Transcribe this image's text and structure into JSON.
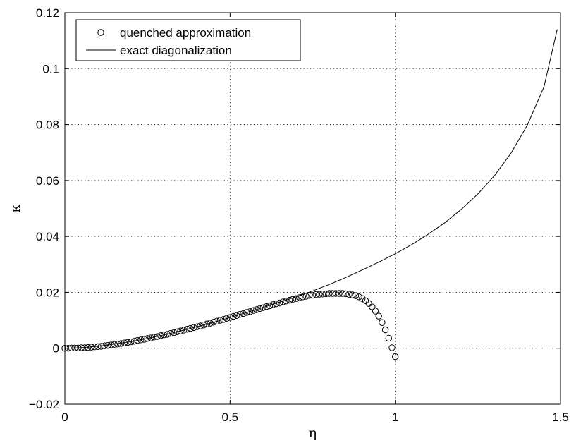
{
  "chart_data": {
    "type": "line",
    "title": "",
    "xlabel": "η",
    "ylabel": "κ",
    "xlim": [
      0,
      1.5
    ],
    "ylim": [
      -0.02,
      0.12
    ],
    "x_ticks": [
      0,
      0.5,
      1,
      1.5
    ],
    "x_tick_labels": [
      "0",
      "0.5",
      "1",
      "1.5"
    ],
    "y_ticks": [
      -0.02,
      0,
      0.02,
      0.04,
      0.06,
      0.08,
      0.1,
      0.12
    ],
    "y_tick_labels": [
      "−0.02",
      "0",
      "0.02",
      "0.04",
      "0.06",
      "0.08",
      "0.1",
      "0.12"
    ],
    "grid": true,
    "legend_position": "top-left",
    "series": [
      {
        "name": "quenched approximation",
        "style": "circle-markers",
        "x": [
          0.0,
          0.01,
          0.02,
          0.03,
          0.04,
          0.05,
          0.06,
          0.07,
          0.08,
          0.09,
          0.1,
          0.11,
          0.12,
          0.13,
          0.14,
          0.15,
          0.16,
          0.17,
          0.18,
          0.19,
          0.2,
          0.21,
          0.22,
          0.23,
          0.24,
          0.25,
          0.26,
          0.27,
          0.28,
          0.29,
          0.3,
          0.31,
          0.32,
          0.33,
          0.34,
          0.35,
          0.36,
          0.37,
          0.38,
          0.39,
          0.4,
          0.41,
          0.42,
          0.43,
          0.44,
          0.45,
          0.46,
          0.47,
          0.48,
          0.49,
          0.5,
          0.51,
          0.52,
          0.53,
          0.54,
          0.55,
          0.56,
          0.57,
          0.58,
          0.59,
          0.6,
          0.61,
          0.62,
          0.63,
          0.64,
          0.65,
          0.66,
          0.67,
          0.68,
          0.69,
          0.7,
          0.71,
          0.72,
          0.73,
          0.74,
          0.75,
          0.76,
          0.77,
          0.78,
          0.79,
          0.8,
          0.81,
          0.82,
          0.83,
          0.84,
          0.85,
          0.86,
          0.87,
          0.88,
          0.89,
          0.9,
          0.91,
          0.92,
          0.93,
          0.94,
          0.95,
          0.96,
          0.97,
          0.98,
          0.99,
          1.0
        ],
        "y": [
          0.0,
          0.0,
          0.0001,
          0.0001,
          0.0001,
          0.0002,
          0.0002,
          0.0003,
          0.0004,
          0.0005,
          0.0006,
          0.0007,
          0.0009,
          0.001,
          0.0012,
          0.0014,
          0.0015,
          0.0017,
          0.0019,
          0.0021,
          0.0023,
          0.0025,
          0.0028,
          0.003,
          0.0032,
          0.0035,
          0.0037,
          0.004,
          0.0042,
          0.0045,
          0.0048,
          0.005,
          0.0053,
          0.0056,
          0.0059,
          0.0062,
          0.0065,
          0.0068,
          0.0071,
          0.0074,
          0.0077,
          0.008,
          0.0083,
          0.0087,
          0.009,
          0.0093,
          0.0097,
          0.01,
          0.0103,
          0.0107,
          0.011,
          0.0114,
          0.0117,
          0.0121,
          0.0124,
          0.0128,
          0.0131,
          0.0135,
          0.0138,
          0.0142,
          0.0145,
          0.0149,
          0.0152,
          0.0156,
          0.0159,
          0.0162,
          0.0166,
          0.0169,
          0.0172,
          0.0175,
          0.0178,
          0.0181,
          0.0184,
          0.0186,
          0.0189,
          0.019,
          0.0192,
          0.0193,
          0.0194,
          0.0195,
          0.0196,
          0.0196,
          0.0196,
          0.0196,
          0.0196,
          0.0195,
          0.0193,
          0.0191,
          0.0188,
          0.0184,
          0.0178,
          0.017,
          0.016,
          0.0148,
          0.0133,
          0.0115,
          0.0092,
          0.0066,
          0.0036,
          0.0002,
          -0.003
        ]
      },
      {
        "name": "exact diagonalization",
        "style": "solid-line",
        "x": [
          0.0,
          0.05,
          0.1,
          0.15,
          0.2,
          0.25,
          0.3,
          0.35,
          0.4,
          0.45,
          0.5,
          0.55,
          0.6,
          0.65,
          0.7,
          0.75,
          0.8,
          0.85,
          0.9,
          0.95,
          1.0,
          1.05,
          1.1,
          1.15,
          1.2,
          1.25,
          1.3,
          1.35,
          1.4,
          1.45,
          1.49
        ],
        "y": [
          0.0,
          0.0002,
          0.0007,
          0.0015,
          0.0024,
          0.0035,
          0.0048,
          0.0062,
          0.0077,
          0.0093,
          0.011,
          0.0128,
          0.0146,
          0.0165,
          0.0184,
          0.0205,
          0.0228,
          0.0253,
          0.028,
          0.0308,
          0.0338,
          0.0371,
          0.0408,
          0.0449,
          0.0497,
          0.0552,
          0.0617,
          0.0697,
          0.0799,
          0.0935,
          0.114
        ]
      }
    ]
  }
}
